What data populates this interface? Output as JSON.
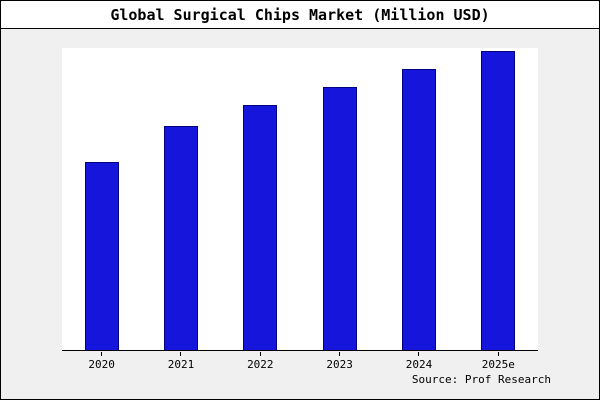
{
  "title": "Global Surgical Chips Market (Million USD)",
  "source": "Source: Prof Research",
  "colors": {
    "bar_fill": "#1515dc",
    "bar_edge": "#000080",
    "figure_bg": "#f0f0f0",
    "plot_bg": "#ffffff",
    "frame_border": "#000000"
  },
  "chart_data": {
    "type": "bar",
    "title": "Global Surgical Chips Market (Million USD)",
    "categories": [
      "2020",
      "2021",
      "2022",
      "2023",
      "2024",
      "2025e"
    ],
    "values": [
      63,
      75,
      82,
      88,
      94,
      100
    ],
    "xlabel": "",
    "ylabel": "",
    "ylim": [
      0,
      101
    ],
    "grid": false,
    "legend": false,
    "y_axis_ticks_visible": false,
    "annotation": "Source: Prof Research"
  }
}
